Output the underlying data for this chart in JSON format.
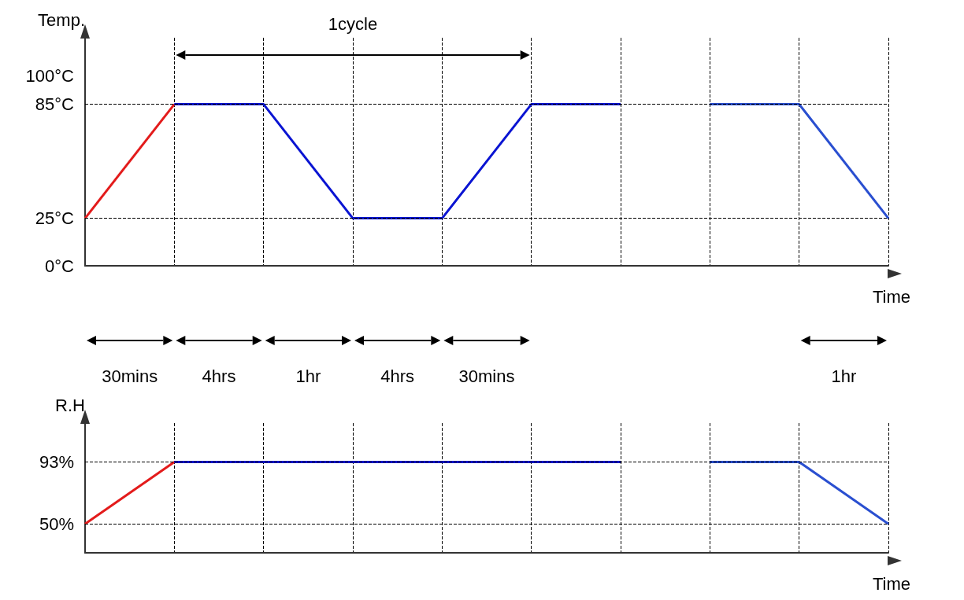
{
  "chart_data": [
    {
      "type": "line",
      "ylabel": "Temp.",
      "xlabel": "Time",
      "categories": [
        null,
        null,
        null,
        null,
        null,
        null,
        null,
        null,
        null,
        null
      ],
      "series": [
        {
          "color": "#e31b1b",
          "values": [
            25,
            85,
            null,
            null,
            null,
            null,
            null,
            null,
            null,
            null
          ]
        },
        {
          "color": "#0a14d2",
          "values": [
            null,
            85,
            85,
            25,
            25,
            85,
            85,
            null,
            null,
            null
          ]
        },
        {
          "color": "#2a4fd0",
          "values": [
            null,
            null,
            null,
            null,
            null,
            null,
            null,
            85,
            85,
            25
          ]
        }
      ],
      "ylim": [
        0,
        120
      ],
      "yticks": [
        {
          "value": 0,
          "label": "0°C"
        },
        {
          "value": 25,
          "label": "25°C"
        },
        {
          "value": 85,
          "label": "85°C"
        },
        {
          "value": 100,
          "label": "100°C"
        }
      ],
      "ref_lines": [
        {
          "axis": "y",
          "value": 85,
          "line_style": "dashed",
          "color": "#000000"
        },
        {
          "axis": "y",
          "value": 25,
          "line_style": "dashed",
          "color": "#000000"
        }
      ],
      "grid": "x",
      "tick_labels": "y",
      "marker": "none",
      "annotations": [
        "1cycle"
      ]
    },
    {
      "type": "line",
      "ylabel": "R.H",
      "xlabel": "Time",
      "categories": [
        null,
        null,
        null,
        null,
        null,
        null,
        null,
        null,
        null,
        null
      ],
      "series": [
        {
          "color": "#e31b1b",
          "values": [
            50,
            93,
            null,
            null,
            null,
            null,
            null,
            null,
            null,
            null
          ]
        },
        {
          "color": "#0a14d2",
          "values": [
            null,
            93,
            93,
            93,
            93,
            93,
            93,
            null,
            null,
            null
          ]
        },
        {
          "color": "#2a4fd0",
          "values": [
            null,
            null,
            null,
            null,
            null,
            null,
            null,
            93,
            93,
            50
          ]
        }
      ],
      "ylim": [
        30,
        120
      ],
      "yticks": [
        {
          "value": 50,
          "label": "50%"
        },
        {
          "value": 93,
          "label": "93%"
        }
      ],
      "ref_lines": [
        {
          "axis": "y",
          "value": 93,
          "line_style": "dashed",
          "color": "#000000"
        },
        {
          "axis": "y",
          "value": 50,
          "line_style": "dashed",
          "color": "#000000"
        }
      ],
      "grid": "x",
      "tick_labels": "y",
      "marker": "none",
      "annotations": [
        "30mins",
        "4hrs",
        "1hr",
        "4hrs",
        "30mins",
        "1hr"
      ]
    }
  ]
}
